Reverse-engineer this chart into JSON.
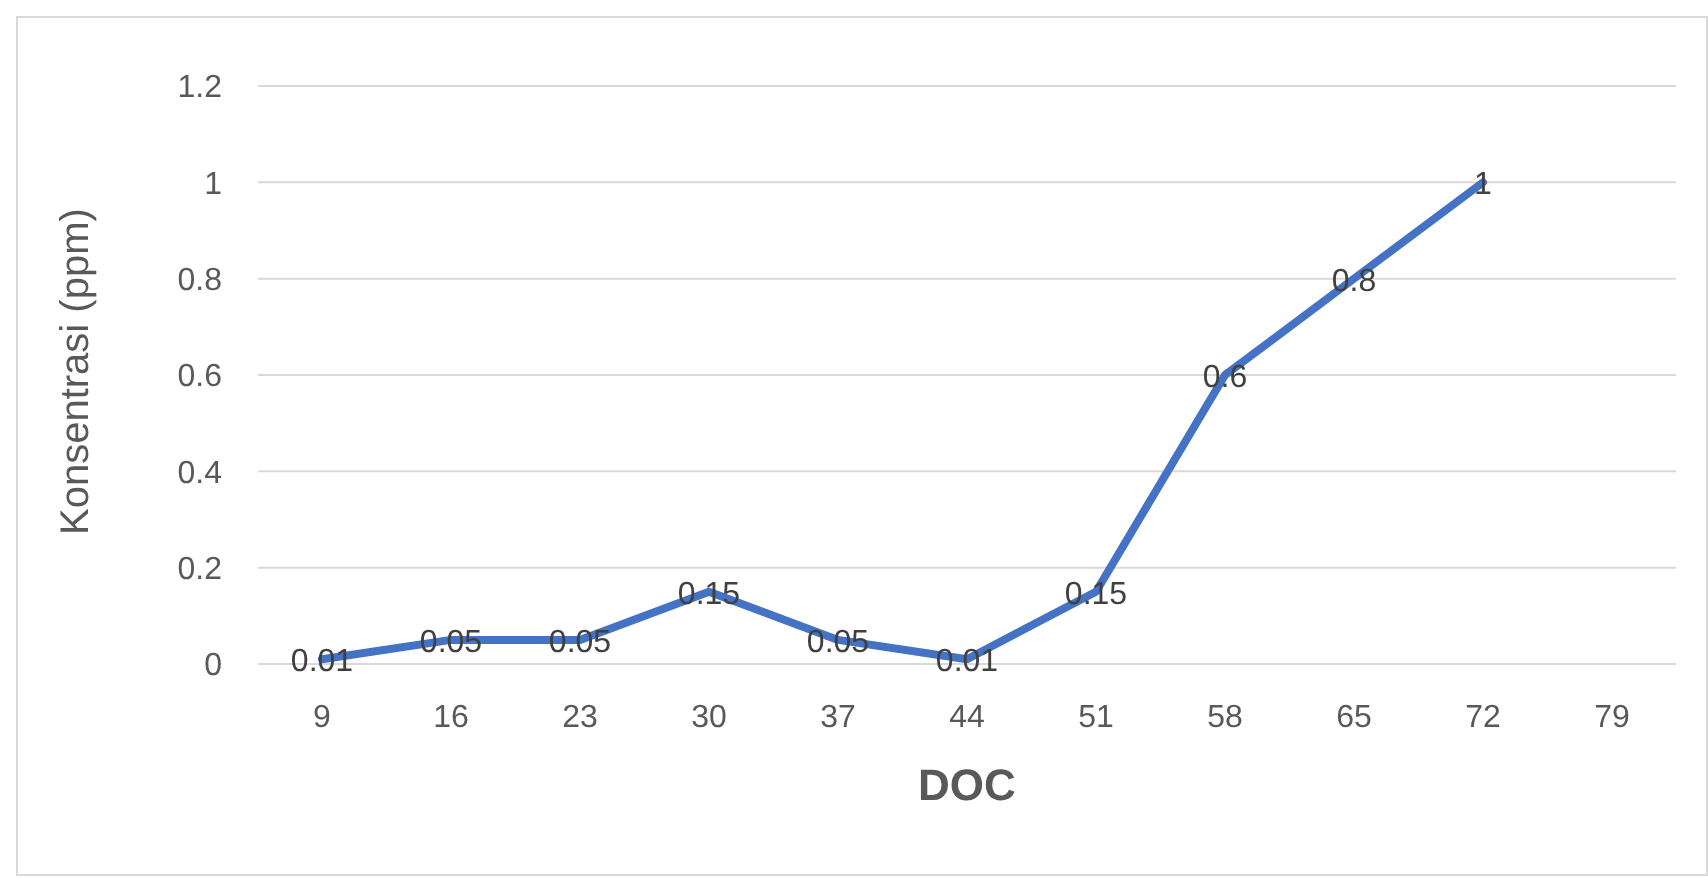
{
  "chart_data": {
    "type": "line",
    "xlabel": "DOC",
    "ylabel": "Konsentrasi (ppm)",
    "categories": [
      "9",
      "16",
      "23",
      "30",
      "37",
      "44",
      "51",
      "58",
      "65",
      "72",
      "79"
    ],
    "series": [
      {
        "color": "#4472c4",
        "values": [
          0.01,
          0.05,
          0.05,
          0.15,
          0.05,
          0.01,
          0.15,
          0.6,
          0.8,
          1,
          null
        ]
      }
    ],
    "ylim": [
      0,
      1.2
    ],
    "yticks": [
      0,
      0.2,
      0.4,
      0.6,
      0.8,
      1,
      1.2
    ],
    "grid": "y",
    "legend": false,
    "marker": "none",
    "line_style": "solid",
    "data_labels": true
  }
}
